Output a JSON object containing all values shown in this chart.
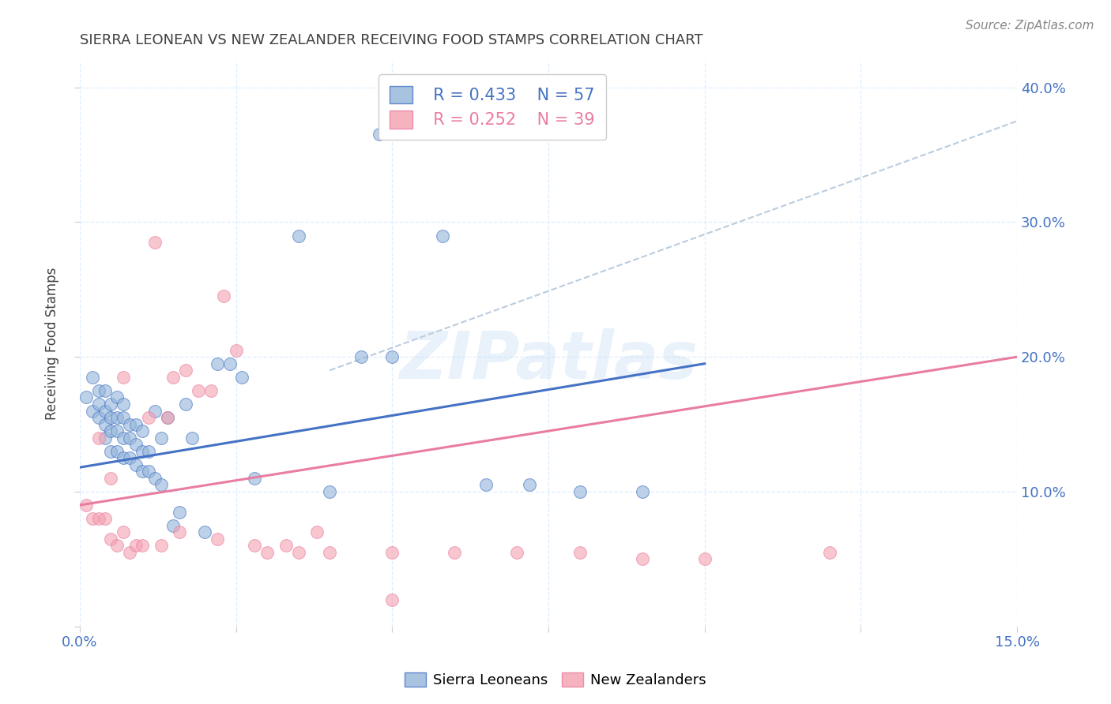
{
  "title": "SIERRA LEONEAN VS NEW ZEALANDER RECEIVING FOOD STAMPS CORRELATION CHART",
  "source": "Source: ZipAtlas.com",
  "ylabel": "Receiving Food Stamps",
  "xlabel": "",
  "xlim": [
    0.0,
    0.15
  ],
  "ylim": [
    0.0,
    0.42
  ],
  "legend_r_blue": "R = 0.433",
  "legend_n_blue": "N = 57",
  "legend_r_pink": "R = 0.252",
  "legend_n_pink": "N = 39",
  "blue_color": "#92B4D9",
  "pink_color": "#F4A0B0",
  "blue_line_color": "#4472C4",
  "pink_line_color": "#E97DA0",
  "dashed_line_color": "#BBCCDD",
  "title_color": "#404040",
  "axis_color": "#4472C4",
  "grid_color": "#DDEEFF",
  "watermark": "ZIPatlas",
  "blue_scatter_x": [
    0.001,
    0.002,
    0.002,
    0.003,
    0.003,
    0.003,
    0.004,
    0.004,
    0.004,
    0.004,
    0.005,
    0.005,
    0.005,
    0.005,
    0.006,
    0.006,
    0.006,
    0.006,
    0.007,
    0.007,
    0.007,
    0.007,
    0.008,
    0.008,
    0.008,
    0.009,
    0.009,
    0.009,
    0.01,
    0.01,
    0.01,
    0.011,
    0.011,
    0.012,
    0.012,
    0.013,
    0.013,
    0.014,
    0.015,
    0.016,
    0.017,
    0.018,
    0.02,
    0.022,
    0.024,
    0.026,
    0.028,
    0.035,
    0.04,
    0.045,
    0.05,
    0.058,
    0.065,
    0.072,
    0.08,
    0.09,
    0.048
  ],
  "blue_scatter_y": [
    0.17,
    0.185,
    0.16,
    0.175,
    0.165,
    0.155,
    0.14,
    0.16,
    0.15,
    0.175,
    0.13,
    0.145,
    0.155,
    0.165,
    0.13,
    0.145,
    0.155,
    0.17,
    0.125,
    0.14,
    0.155,
    0.165,
    0.125,
    0.14,
    0.15,
    0.12,
    0.135,
    0.15,
    0.115,
    0.13,
    0.145,
    0.115,
    0.13,
    0.11,
    0.16,
    0.105,
    0.14,
    0.155,
    0.075,
    0.085,
    0.165,
    0.14,
    0.07,
    0.195,
    0.195,
    0.185,
    0.11,
    0.29,
    0.1,
    0.2,
    0.2,
    0.29,
    0.105,
    0.105,
    0.1,
    0.1,
    0.365
  ],
  "pink_scatter_x": [
    0.001,
    0.002,
    0.003,
    0.003,
    0.004,
    0.005,
    0.005,
    0.006,
    0.007,
    0.007,
    0.008,
    0.009,
    0.01,
    0.011,
    0.012,
    0.013,
    0.014,
    0.015,
    0.016,
    0.017,
    0.019,
    0.021,
    0.022,
    0.023,
    0.025,
    0.028,
    0.03,
    0.033,
    0.035,
    0.038,
    0.04,
    0.05,
    0.06,
    0.07,
    0.08,
    0.09,
    0.1,
    0.12,
    0.05
  ],
  "pink_scatter_y": [
    0.09,
    0.08,
    0.08,
    0.14,
    0.08,
    0.065,
    0.11,
    0.06,
    0.07,
    0.185,
    0.055,
    0.06,
    0.06,
    0.155,
    0.285,
    0.06,
    0.155,
    0.185,
    0.07,
    0.19,
    0.175,
    0.175,
    0.065,
    0.245,
    0.205,
    0.06,
    0.055,
    0.06,
    0.055,
    0.07,
    0.055,
    0.055,
    0.055,
    0.055,
    0.055,
    0.05,
    0.05,
    0.055,
    0.02
  ],
  "blue_line_x": [
    0.0,
    0.1
  ],
  "blue_line_y": [
    0.118,
    0.195
  ],
  "pink_line_x": [
    0.0,
    0.15
  ],
  "pink_line_y": [
    0.09,
    0.2
  ],
  "dashed_line_x": [
    0.04,
    0.15
  ],
  "dashed_line_y": [
    0.19,
    0.375
  ]
}
